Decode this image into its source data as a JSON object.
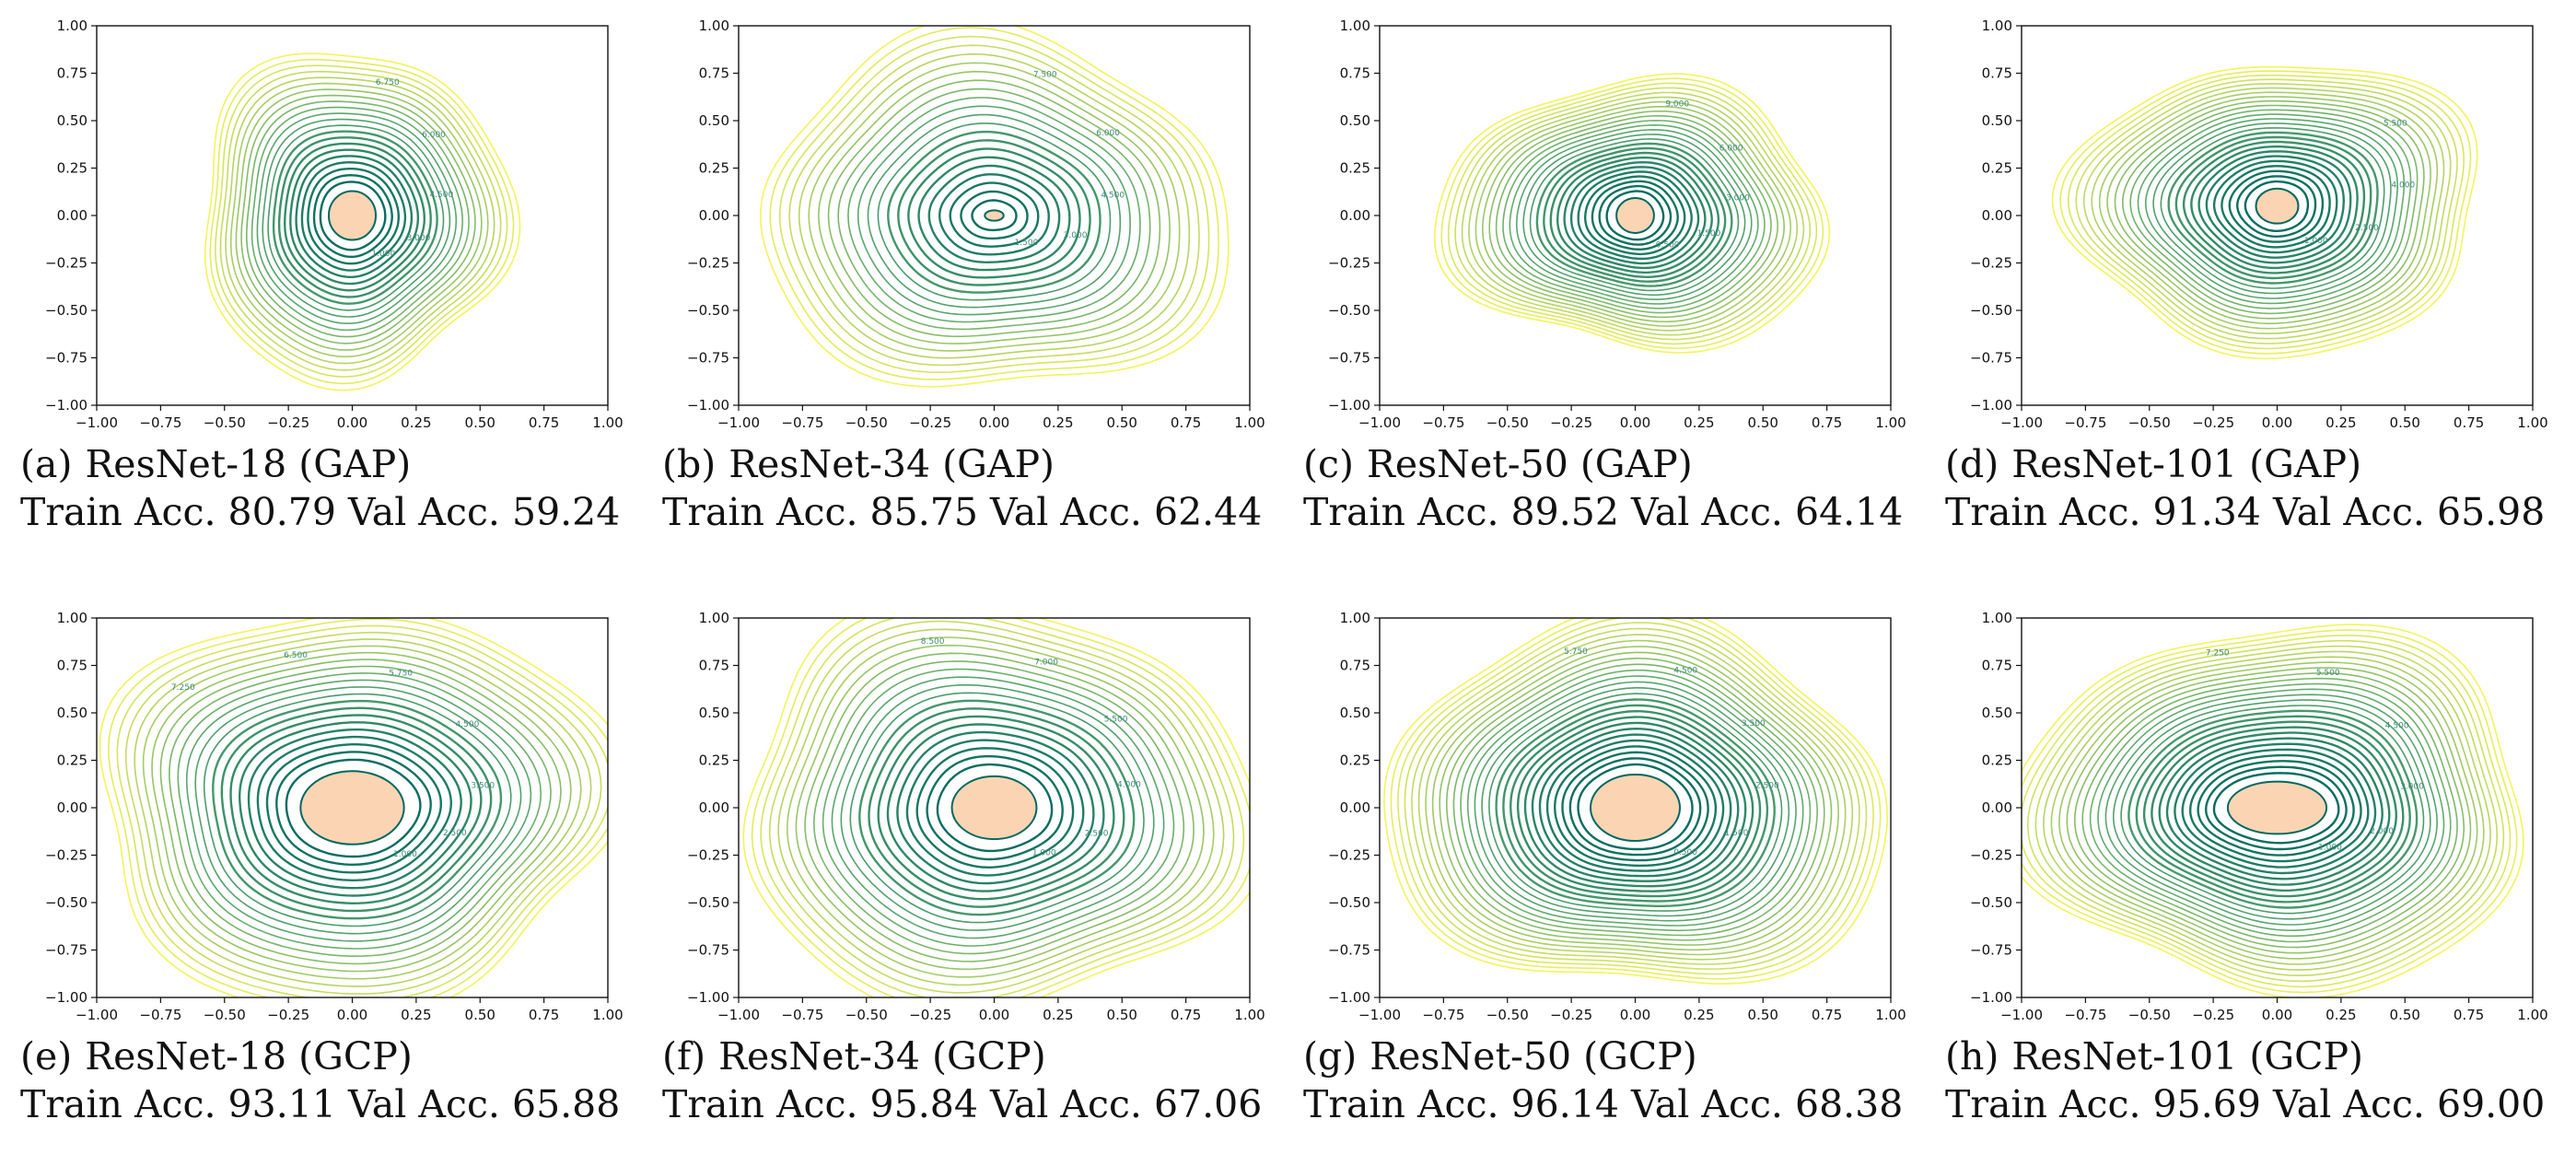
{
  "theme": {
    "contour_low": "#00685f",
    "contour_mid": "#5aa86d",
    "contour_high": "#f4f458",
    "minimum_fill": "#fbd5b3"
  },
  "panels": [
    {
      "id": "a",
      "label": "(a)",
      "title": "ResNet-18 (GAP)",
      "metrics": "Train Acc. 80.79 Val Acc. 59.24",
      "chart_data": {
        "type": "contour",
        "xlim": [
          -1,
          1
        ],
        "ylim": [
          -1,
          1
        ],
        "xticks": [
          "−1.00",
          "−0.75",
          "−0.50",
          "−0.25",
          "0.00",
          "0.25",
          "0.50",
          "0.75",
          "1.00"
        ],
        "yticks": [
          "−1.00",
          "−0.75",
          "−0.50",
          "−0.25",
          "0.00",
          "0.25",
          "0.50",
          "0.75",
          "1.00"
        ],
        "center": [
          0.0,
          0.0
        ],
        "min_region": [
          0.1,
          0.14
        ],
        "outer_extent": [
          0.62,
          0.86
        ],
        "levels": 22,
        "contour_labels": [
          "1.000",
          "3.000",
          "4.500",
          "6.000",
          "6.750"
        ]
      }
    },
    {
      "id": "b",
      "label": "(b)",
      "title": "ResNet-34 (GAP)",
      "metrics": "Train Acc. 85.75 Val Acc. 62.44",
      "chart_data": {
        "type": "contour",
        "xlim": [
          -1,
          1
        ],
        "ylim": [
          -1,
          1
        ],
        "xticks": [
          "−1.00",
          "−0.75",
          "−0.50",
          "−0.25",
          "0.00",
          "0.25",
          "0.50",
          "0.75",
          "1.00"
        ],
        "yticks": [
          "−1.00",
          "−0.75",
          "−0.50",
          "−0.25",
          "0.00",
          "0.25",
          "0.50",
          "0.75",
          "1.00"
        ],
        "center": [
          0.0,
          0.0
        ],
        "min_region": [
          0.04,
          0.03
        ],
        "outer_extent": [
          0.92,
          0.94
        ],
        "levels": 22,
        "contour_labels": [
          "1.500",
          "3.000",
          "4.500",
          "6.000",
          "7.500"
        ]
      }
    },
    {
      "id": "c",
      "label": "(c)",
      "title": "ResNet-50 (GAP)",
      "metrics": "Train Acc. 89.52 Val Acc. 64.14",
      "chart_data": {
        "type": "contour",
        "xlim": [
          -1,
          1
        ],
        "ylim": [
          -1,
          1
        ],
        "xticks": [
          "−1.00",
          "−0.75",
          "−0.50",
          "−0.25",
          "0.00",
          "0.25",
          "0.50",
          "0.75",
          "1.00"
        ],
        "yticks": [
          "−1.00",
          "−0.75",
          "−0.50",
          "−0.25",
          "0.00",
          "0.25",
          "0.50",
          "0.75",
          "1.00"
        ],
        "center": [
          0.0,
          0.0
        ],
        "min_region": [
          0.08,
          0.1
        ],
        "outer_extent": [
          0.75,
          0.72
        ],
        "levels": 26,
        "contour_labels": [
          "0.500",
          "1.500",
          "3.000",
          "6.000",
          "9.000"
        ]
      }
    },
    {
      "id": "d",
      "label": "(d)",
      "title": "ResNet-101 (GAP)",
      "metrics": "Train Acc. 91.34 Val Acc. 65.98",
      "chart_data": {
        "type": "contour",
        "xlim": [
          -1,
          1
        ],
        "ylim": [
          -1,
          1
        ],
        "xticks": [
          "−1.00",
          "−0.75",
          "−0.50",
          "−0.25",
          "0.00",
          "0.25",
          "0.50",
          "0.75",
          "1.00"
        ],
        "yticks": [
          "−1.00",
          "−0.75",
          "−0.50",
          "−0.25",
          "0.00",
          "0.25",
          "0.50",
          "0.75",
          "1.00"
        ],
        "center": [
          0.0,
          0.05
        ],
        "min_region": [
          0.09,
          0.1
        ],
        "outer_extent": [
          0.8,
          0.78
        ],
        "levels": 26,
        "contour_labels": [
          "1.000",
          "2.500",
          "4.000",
          "5.500"
        ]
      }
    },
    {
      "id": "e",
      "label": "(e)",
      "title": "ResNet-18 (GCP)",
      "metrics": "Train Acc. 93.11 Val Acc. 65.88",
      "chart_data": {
        "type": "contour",
        "xlim": [
          -1,
          1
        ],
        "ylim": [
          -1,
          1
        ],
        "xticks": [
          "−1.00",
          "−0.75",
          "−0.50",
          "−0.25",
          "0.00",
          "0.25",
          "0.50",
          "0.75",
          "1.00"
        ],
        "yticks": [
          "−1.00",
          "−0.75",
          "−0.50",
          "−0.25",
          "0.00",
          "0.25",
          "0.50",
          "0.75",
          "1.00"
        ],
        "center": [
          0.0,
          0.0
        ],
        "min_region": [
          0.22,
          0.21
        ],
        "outer_extent": [
          1.02,
          1.05
        ],
        "levels": 22,
        "contour_labels": [
          "1.000",
          "2.500",
          "3.500",
          "4.500",
          "5.750",
          "6.500",
          "7.250"
        ]
      }
    },
    {
      "id": "f",
      "label": "(f)",
      "title": "ResNet-34 (GCP)",
      "metrics": "Train Acc. 95.84 Val Acc. 67.06",
      "chart_data": {
        "type": "contour",
        "xlim": [
          -1,
          1
        ],
        "ylim": [
          -1,
          1
        ],
        "xticks": [
          "−1.00",
          "−0.75",
          "−0.50",
          "−0.25",
          "0.00",
          "0.25",
          "0.50",
          "0.75",
          "1.00"
        ],
        "yticks": [
          "−1.00",
          "−0.75",
          "−0.50",
          "−0.25",
          "0.00",
          "0.25",
          "0.50",
          "0.75",
          "1.00"
        ],
        "center": [
          0.0,
          0.0
        ],
        "min_region": [
          0.18,
          0.18
        ],
        "outer_extent": [
          1.02,
          1.05
        ],
        "levels": 22,
        "contour_labels": [
          "1.000",
          "2.500",
          "4.000",
          "5.500",
          "7.000",
          "8.500"
        ]
      }
    },
    {
      "id": "g",
      "label": "(g)",
      "title": "ResNet-50 (GCP)",
      "metrics": "Train Acc. 96.14 Val Acc. 68.38",
      "chart_data": {
        "type": "contour",
        "xlim": [
          -1,
          1
        ],
        "ylim": [
          -1,
          1
        ],
        "xticks": [
          "−1.00",
          "−0.75",
          "−0.50",
          "−0.25",
          "0.00",
          "0.25",
          "0.50",
          "0.75",
          "1.00"
        ],
        "yticks": [
          "−1.00",
          "−0.75",
          "−0.50",
          "−0.25",
          "0.00",
          "0.25",
          "0.50",
          "0.75",
          "1.00"
        ],
        "center": [
          0.0,
          0.0
        ],
        "min_region": [
          0.19,
          0.19
        ],
        "outer_extent": [
          0.98,
          0.98
        ],
        "levels": 28,
        "contour_labels": [
          "0.500",
          "1.500",
          "2.500",
          "3.500",
          "4.500",
          "5.750"
        ]
      }
    },
    {
      "id": "h",
      "label": "(h)",
      "title": "ResNet-101 (GCP)",
      "metrics": "Train Acc. 95.69 Val Acc. 69.00",
      "chart_data": {
        "type": "contour",
        "xlim": [
          -1,
          1
        ],
        "ylim": [
          -1,
          1
        ],
        "xticks": [
          "−1.00",
          "−0.75",
          "−0.50",
          "−0.25",
          "0.00",
          "0.25",
          "0.50",
          "0.75",
          "1.00"
        ],
        "yticks": [
          "−1.00",
          "−0.75",
          "−0.50",
          "−0.25",
          "0.00",
          "0.25",
          "0.50",
          "0.75",
          "1.00"
        ],
        "center": [
          0.0,
          0.0
        ],
        "min_region": [
          0.21,
          0.15
        ],
        "outer_extent": [
          0.98,
          0.98
        ],
        "levels": 28,
        "contour_labels": [
          "1.000",
          "2.000",
          "3.000",
          "4.500",
          "5.500",
          "7.250"
        ]
      }
    }
  ]
}
